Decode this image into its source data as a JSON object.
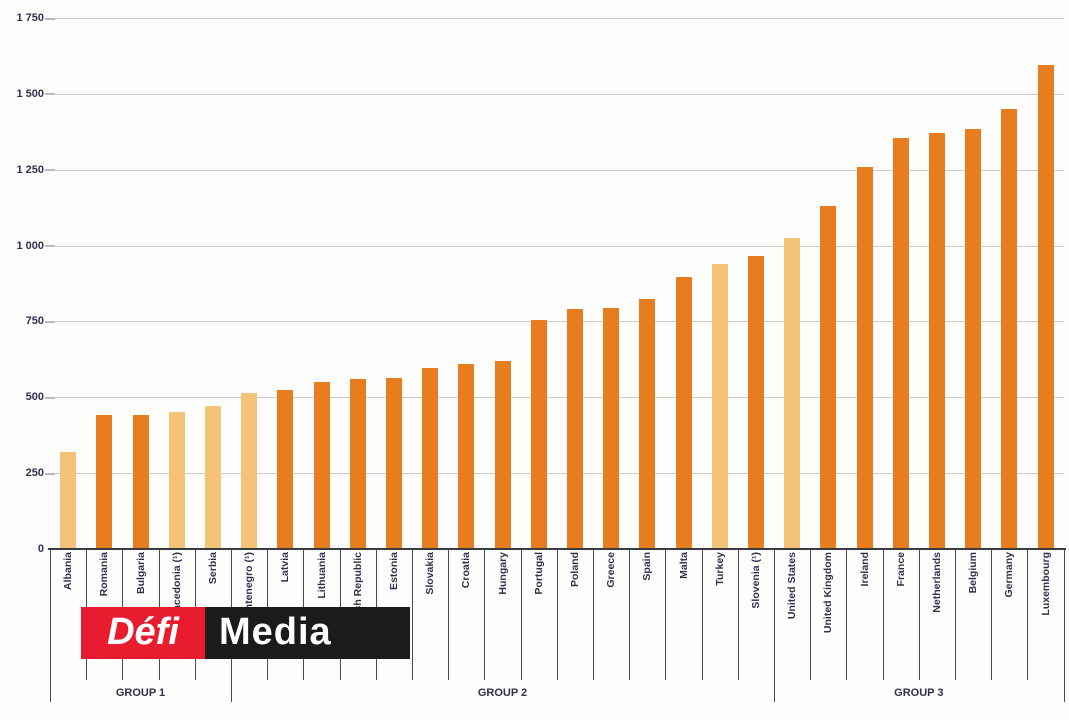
{
  "chart_data": {
    "type": "bar",
    "title": "",
    "categories": [
      "Albania",
      "Romania",
      "Bulgaria",
      "FYR Macedonia (¹)",
      "Serbia",
      "Montenegro (¹)",
      "Latvia",
      "Lithuania",
      "Czech Republic",
      "Estonia",
      "Slovakia",
      "Croatia",
      "Hungary",
      "Portugal",
      "Poland",
      "Greece",
      "Spain",
      "Malta",
      "Turkey",
      "Slovenia (¹)",
      "United States",
      "United Kingdom",
      "Ireland",
      "France",
      "Netherlands",
      "Belgium",
      "Germany",
      "Luxembourg"
    ],
    "values": [
      320,
      440,
      440,
      450,
      470,
      515,
      525,
      550,
      560,
      565,
      595,
      610,
      620,
      755,
      790,
      795,
      825,
      895,
      940,
      965,
      1025,
      1130,
      1260,
      1355,
      1370,
      1385,
      1450,
      1595
    ],
    "shades": [
      "light",
      "dark",
      "dark",
      "light",
      "light",
      "light",
      "dark",
      "dark",
      "dark",
      "dark",
      "dark",
      "dark",
      "dark",
      "dark",
      "dark",
      "dark",
      "dark",
      "dark",
      "light",
      "dark",
      "light",
      "dark",
      "dark",
      "dark",
      "dark",
      "dark",
      "dark",
      "dark"
    ],
    "groups": [
      {
        "label": "GROUP 1",
        "start": 0,
        "end": 5
      },
      {
        "label": "GROUP 2",
        "start": 5,
        "end": 20
      },
      {
        "label": "GROUP 3",
        "start": 20,
        "end": 28
      }
    ],
    "ylim": [
      0,
      1750
    ],
    "ytick_values": [
      0,
      250,
      500,
      750,
      1000,
      1250,
      1500,
      1750
    ],
    "ytick_labels": [
      "0",
      "250",
      "500",
      "750",
      "1 000",
      "1 250",
      "1 500",
      "1 750"
    ],
    "grid": "horizontal",
    "legend": "none",
    "colors": {
      "bar_dark": "#e87d1f",
      "bar_light": "#f4c377",
      "gridline": "#cbcbcb",
      "axis_line": "#3a3a44",
      "label_text": "#30304e"
    }
  },
  "watermark": {
    "defi_label": "Défi",
    "media_label": "Media",
    "defi_bg": "#e81c2e",
    "media_bg": "#1b1b1b",
    "text_color": "#ffffff"
  }
}
